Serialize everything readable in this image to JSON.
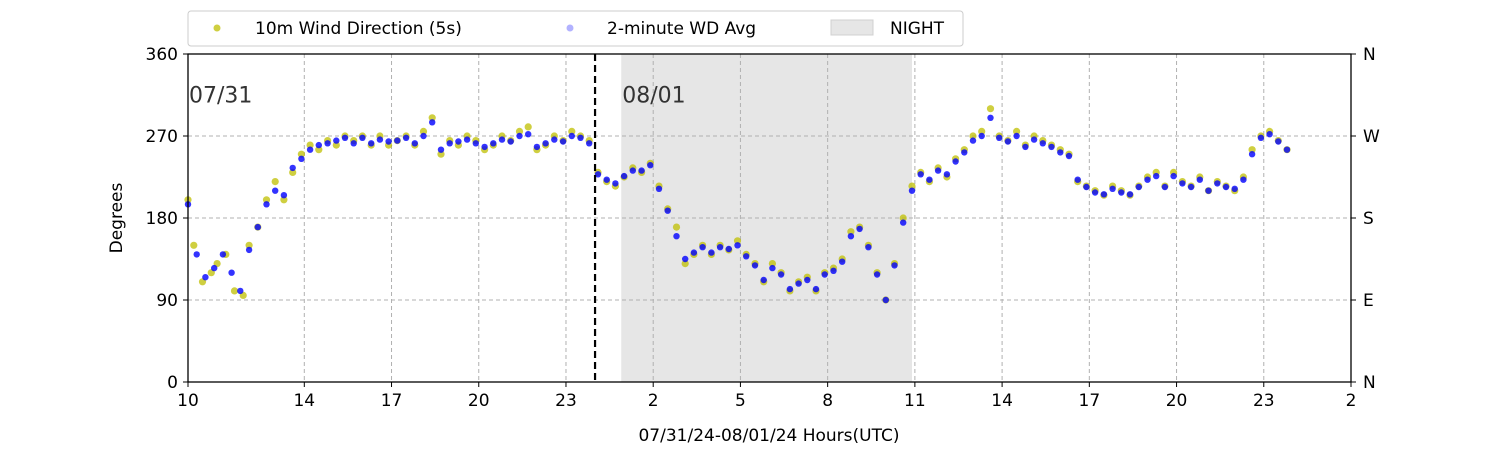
{
  "chart_data": {
    "type": "scatter",
    "xlabel": "07/31/24-08/01/24  Hours(UTC)",
    "ylabel": "Degrees",
    "xlim": [
      10,
      50
    ],
    "ylim": [
      0,
      360
    ],
    "x_ticks": [
      10,
      14,
      17,
      20,
      23,
      26,
      29,
      32,
      35,
      38,
      41,
      44,
      47,
      50
    ],
    "x_tick_labels": [
      "10",
      "14",
      "17",
      "20",
      "23",
      "2",
      "5",
      "8",
      "11",
      "14",
      "17",
      "20",
      "23",
      "2"
    ],
    "y_ticks": [
      0,
      90,
      180,
      270,
      360
    ],
    "y_tick_labels": [
      "0",
      "90",
      "180",
      "270",
      "360"
    ],
    "y2_tick_labels": [
      "N",
      "E",
      "S",
      "W",
      "N"
    ],
    "grid": true,
    "legend_position": "top",
    "day_labels": [
      {
        "text": "07/31",
        "x": 10.0,
        "y": 320
      },
      {
        "text": "08/01",
        "x": 24.9,
        "y": 320
      }
    ],
    "midnight_line_x": 24.0,
    "night_span": [
      24.9,
      34.9
    ],
    "series": [
      {
        "name": "10m Wind Direction (5s)",
        "color": "#bfbf00",
        "points": [
          [
            10.0,
            200
          ],
          [
            10.2,
            150
          ],
          [
            10.5,
            110
          ],
          [
            10.8,
            120
          ],
          [
            11.0,
            130
          ],
          [
            11.3,
            140
          ],
          [
            11.6,
            100
          ],
          [
            11.9,
            95
          ],
          [
            12.1,
            150
          ],
          [
            12.4,
            170
          ],
          [
            12.7,
            200
          ],
          [
            13.0,
            220
          ],
          [
            13.3,
            200
          ],
          [
            13.6,
            230
          ],
          [
            13.9,
            250
          ],
          [
            14.2,
            260
          ],
          [
            14.5,
            255
          ],
          [
            14.8,
            265
          ],
          [
            15.1,
            260
          ],
          [
            15.4,
            270
          ],
          [
            15.7,
            265
          ],
          [
            16.0,
            270
          ],
          [
            16.3,
            260
          ],
          [
            16.6,
            270
          ],
          [
            16.9,
            260
          ],
          [
            17.2,
            265
          ],
          [
            17.5,
            270
          ],
          [
            17.8,
            260
          ],
          [
            18.1,
            275
          ],
          [
            18.4,
            290
          ],
          [
            18.7,
            250
          ],
          [
            19.0,
            265
          ],
          [
            19.3,
            260
          ],
          [
            19.6,
            270
          ],
          [
            19.9,
            265
          ],
          [
            20.2,
            255
          ],
          [
            20.5,
            260
          ],
          [
            20.8,
            270
          ],
          [
            21.1,
            265
          ],
          [
            21.4,
            275
          ],
          [
            21.7,
            280
          ],
          [
            22.0,
            255
          ],
          [
            22.3,
            260
          ],
          [
            22.6,
            270
          ],
          [
            22.9,
            265
          ],
          [
            23.2,
            275
          ],
          [
            23.5,
            270
          ],
          [
            23.8,
            265
          ],
          [
            24.1,
            230
          ],
          [
            24.4,
            220
          ],
          [
            24.7,
            215
          ],
          [
            25.0,
            225
          ],
          [
            25.3,
            235
          ],
          [
            25.6,
            230
          ],
          [
            25.9,
            240
          ],
          [
            26.2,
            215
          ],
          [
            26.5,
            190
          ],
          [
            26.8,
            170
          ],
          [
            27.1,
            130
          ],
          [
            27.4,
            140
          ],
          [
            27.7,
            150
          ],
          [
            28.0,
            140
          ],
          [
            28.3,
            150
          ],
          [
            28.6,
            145
          ],
          [
            28.9,
            155
          ],
          [
            29.2,
            140
          ],
          [
            29.5,
            130
          ],
          [
            29.8,
            110
          ],
          [
            30.1,
            130
          ],
          [
            30.4,
            120
          ],
          [
            30.7,
            100
          ],
          [
            31.0,
            110
          ],
          [
            31.3,
            115
          ],
          [
            31.6,
            100
          ],
          [
            31.9,
            120
          ],
          [
            32.2,
            125
          ],
          [
            32.5,
            135
          ],
          [
            32.8,
            165
          ],
          [
            33.1,
            170
          ],
          [
            33.4,
            150
          ],
          [
            33.7,
            120
          ],
          [
            34.0,
            90
          ],
          [
            34.3,
            130
          ],
          [
            34.6,
            180
          ],
          [
            34.9,
            215
          ],
          [
            35.2,
            230
          ],
          [
            35.5,
            220
          ],
          [
            35.8,
            235
          ],
          [
            36.1,
            225
          ],
          [
            36.4,
            245
          ],
          [
            36.7,
            255
          ],
          [
            37.0,
            270
          ],
          [
            37.3,
            275
          ],
          [
            37.6,
            300
          ],
          [
            37.9,
            270
          ],
          [
            38.2,
            265
          ],
          [
            38.5,
            275
          ],
          [
            38.8,
            260
          ],
          [
            39.1,
            270
          ],
          [
            39.4,
            265
          ],
          [
            39.7,
            260
          ],
          [
            40.0,
            255
          ],
          [
            40.3,
            250
          ],
          [
            40.6,
            220
          ],
          [
            40.9,
            215
          ],
          [
            41.2,
            210
          ],
          [
            41.5,
            205
          ],
          [
            41.8,
            215
          ],
          [
            42.1,
            210
          ],
          [
            42.4,
            205
          ],
          [
            42.7,
            215
          ],
          [
            43.0,
            225
          ],
          [
            43.3,
            230
          ],
          [
            43.6,
            215
          ],
          [
            43.9,
            230
          ],
          [
            44.2,
            220
          ],
          [
            44.5,
            215
          ],
          [
            44.8,
            225
          ],
          [
            45.1,
            210
          ],
          [
            45.4,
            220
          ],
          [
            45.7,
            215
          ],
          [
            46.0,
            210
          ],
          [
            46.3,
            225
          ],
          [
            46.6,
            255
          ],
          [
            46.9,
            270
          ],
          [
            47.2,
            275
          ],
          [
            47.5,
            265
          ],
          [
            47.8,
            255
          ]
        ]
      },
      {
        "name": "2-minute WD Avg",
        "color": "#0000ff",
        "points": [
          [
            10.0,
            195
          ],
          [
            10.3,
            140
          ],
          [
            10.6,
            115
          ],
          [
            10.9,
            125
          ],
          [
            11.2,
            140
          ],
          [
            11.5,
            120
          ],
          [
            11.8,
            100
          ],
          [
            12.1,
            145
          ],
          [
            12.4,
            170
          ],
          [
            12.7,
            195
          ],
          [
            13.0,
            210
          ],
          [
            13.3,
            205
          ],
          [
            13.6,
            235
          ],
          [
            13.9,
            245
          ],
          [
            14.2,
            255
          ],
          [
            14.5,
            260
          ],
          [
            14.8,
            262
          ],
          [
            15.1,
            265
          ],
          [
            15.4,
            268
          ],
          [
            15.7,
            262
          ],
          [
            16.0,
            268
          ],
          [
            16.3,
            262
          ],
          [
            16.6,
            266
          ],
          [
            16.9,
            264
          ],
          [
            17.2,
            265
          ],
          [
            17.5,
            268
          ],
          [
            17.8,
            262
          ],
          [
            18.1,
            270
          ],
          [
            18.4,
            285
          ],
          [
            18.7,
            255
          ],
          [
            19.0,
            262
          ],
          [
            19.3,
            264
          ],
          [
            19.6,
            266
          ],
          [
            19.9,
            262
          ],
          [
            20.2,
            258
          ],
          [
            20.5,
            262
          ],
          [
            20.8,
            266
          ],
          [
            21.1,
            264
          ],
          [
            21.4,
            270
          ],
          [
            21.7,
            272
          ],
          [
            22.0,
            258
          ],
          [
            22.3,
            262
          ],
          [
            22.6,
            266
          ],
          [
            22.9,
            264
          ],
          [
            23.2,
            270
          ],
          [
            23.5,
            268
          ],
          [
            23.8,
            262
          ],
          [
            24.1,
            228
          ],
          [
            24.4,
            222
          ],
          [
            24.7,
            218
          ],
          [
            25.0,
            226
          ],
          [
            25.3,
            232
          ],
          [
            25.6,
            232
          ],
          [
            25.9,
            238
          ],
          [
            26.2,
            212
          ],
          [
            26.5,
            188
          ],
          [
            26.8,
            160
          ],
          [
            27.1,
            135
          ],
          [
            27.4,
            142
          ],
          [
            27.7,
            148
          ],
          [
            28.0,
            142
          ],
          [
            28.3,
            148
          ],
          [
            28.6,
            146
          ],
          [
            28.9,
            150
          ],
          [
            29.2,
            138
          ],
          [
            29.5,
            128
          ],
          [
            29.8,
            112
          ],
          [
            30.1,
            125
          ],
          [
            30.4,
            118
          ],
          [
            30.7,
            102
          ],
          [
            31.0,
            108
          ],
          [
            31.3,
            112
          ],
          [
            31.6,
            102
          ],
          [
            31.9,
            118
          ],
          [
            32.2,
            122
          ],
          [
            32.5,
            132
          ],
          [
            32.8,
            160
          ],
          [
            33.1,
            168
          ],
          [
            33.4,
            148
          ],
          [
            33.7,
            118
          ],
          [
            34.0,
            90
          ],
          [
            34.3,
            128
          ],
          [
            34.6,
            175
          ],
          [
            34.9,
            210
          ],
          [
            35.2,
            228
          ],
          [
            35.5,
            222
          ],
          [
            35.8,
            232
          ],
          [
            36.1,
            228
          ],
          [
            36.4,
            242
          ],
          [
            36.7,
            252
          ],
          [
            37.0,
            265
          ],
          [
            37.3,
            270
          ],
          [
            37.6,
            290
          ],
          [
            37.9,
            268
          ],
          [
            38.2,
            264
          ],
          [
            38.5,
            270
          ],
          [
            38.8,
            258
          ],
          [
            39.1,
            266
          ],
          [
            39.4,
            262
          ],
          [
            39.7,
            258
          ],
          [
            40.0,
            252
          ],
          [
            40.3,
            248
          ],
          [
            40.6,
            222
          ],
          [
            40.9,
            214
          ],
          [
            41.2,
            208
          ],
          [
            41.5,
            206
          ],
          [
            41.8,
            212
          ],
          [
            42.1,
            208
          ],
          [
            42.4,
            206
          ],
          [
            42.7,
            214
          ],
          [
            43.0,
            222
          ],
          [
            43.3,
            226
          ],
          [
            43.6,
            214
          ],
          [
            43.9,
            226
          ],
          [
            44.2,
            218
          ],
          [
            44.5,
            214
          ],
          [
            44.8,
            222
          ],
          [
            45.1,
            210
          ],
          [
            45.4,
            218
          ],
          [
            45.7,
            214
          ],
          [
            46.0,
            212
          ],
          [
            46.3,
            222
          ],
          [
            46.6,
            250
          ],
          [
            46.9,
            268
          ],
          [
            47.2,
            272
          ],
          [
            47.5,
            264
          ],
          [
            47.8,
            255
          ]
        ]
      }
    ],
    "night_legend_label": "NIGHT",
    "night_color": "#e6e6e6"
  }
}
